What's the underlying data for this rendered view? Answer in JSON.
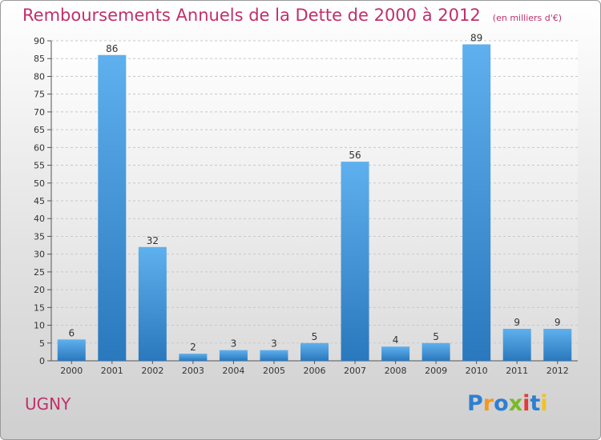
{
  "chart_data": {
    "type": "bar",
    "title": "Remboursements Annuels de la Dette de 2000 à 2012",
    "subtitle": "(en milliers d'€)",
    "categories": [
      "2000",
      "2001",
      "2002",
      "2003",
      "2004",
      "2005",
      "2006",
      "2007",
      "2008",
      "2009",
      "2010",
      "2011",
      "2012"
    ],
    "values": [
      6,
      86,
      32,
      2,
      3,
      3,
      5,
      56,
      4,
      5,
      89,
      9,
      9
    ],
    "ylim": [
      0,
      90
    ],
    "yticks": [
      0,
      5,
      10,
      15,
      20,
      25,
      30,
      35,
      40,
      45,
      50,
      55,
      60,
      65,
      70,
      75,
      80,
      85,
      90
    ],
    "grid": true,
    "bar_color": "#3d8fd6"
  },
  "commune": "UGNY",
  "logo": {
    "text": "Proxiti",
    "letters": [
      "P",
      "r",
      "o",
      "x",
      "i",
      "t",
      "i"
    ],
    "colors": [
      "#2f7fd0",
      "#f29a1f",
      "#2f7fd0",
      "#7ab829",
      "#e23a3a",
      "#2f7fd0",
      "#f2c21f"
    ]
  }
}
